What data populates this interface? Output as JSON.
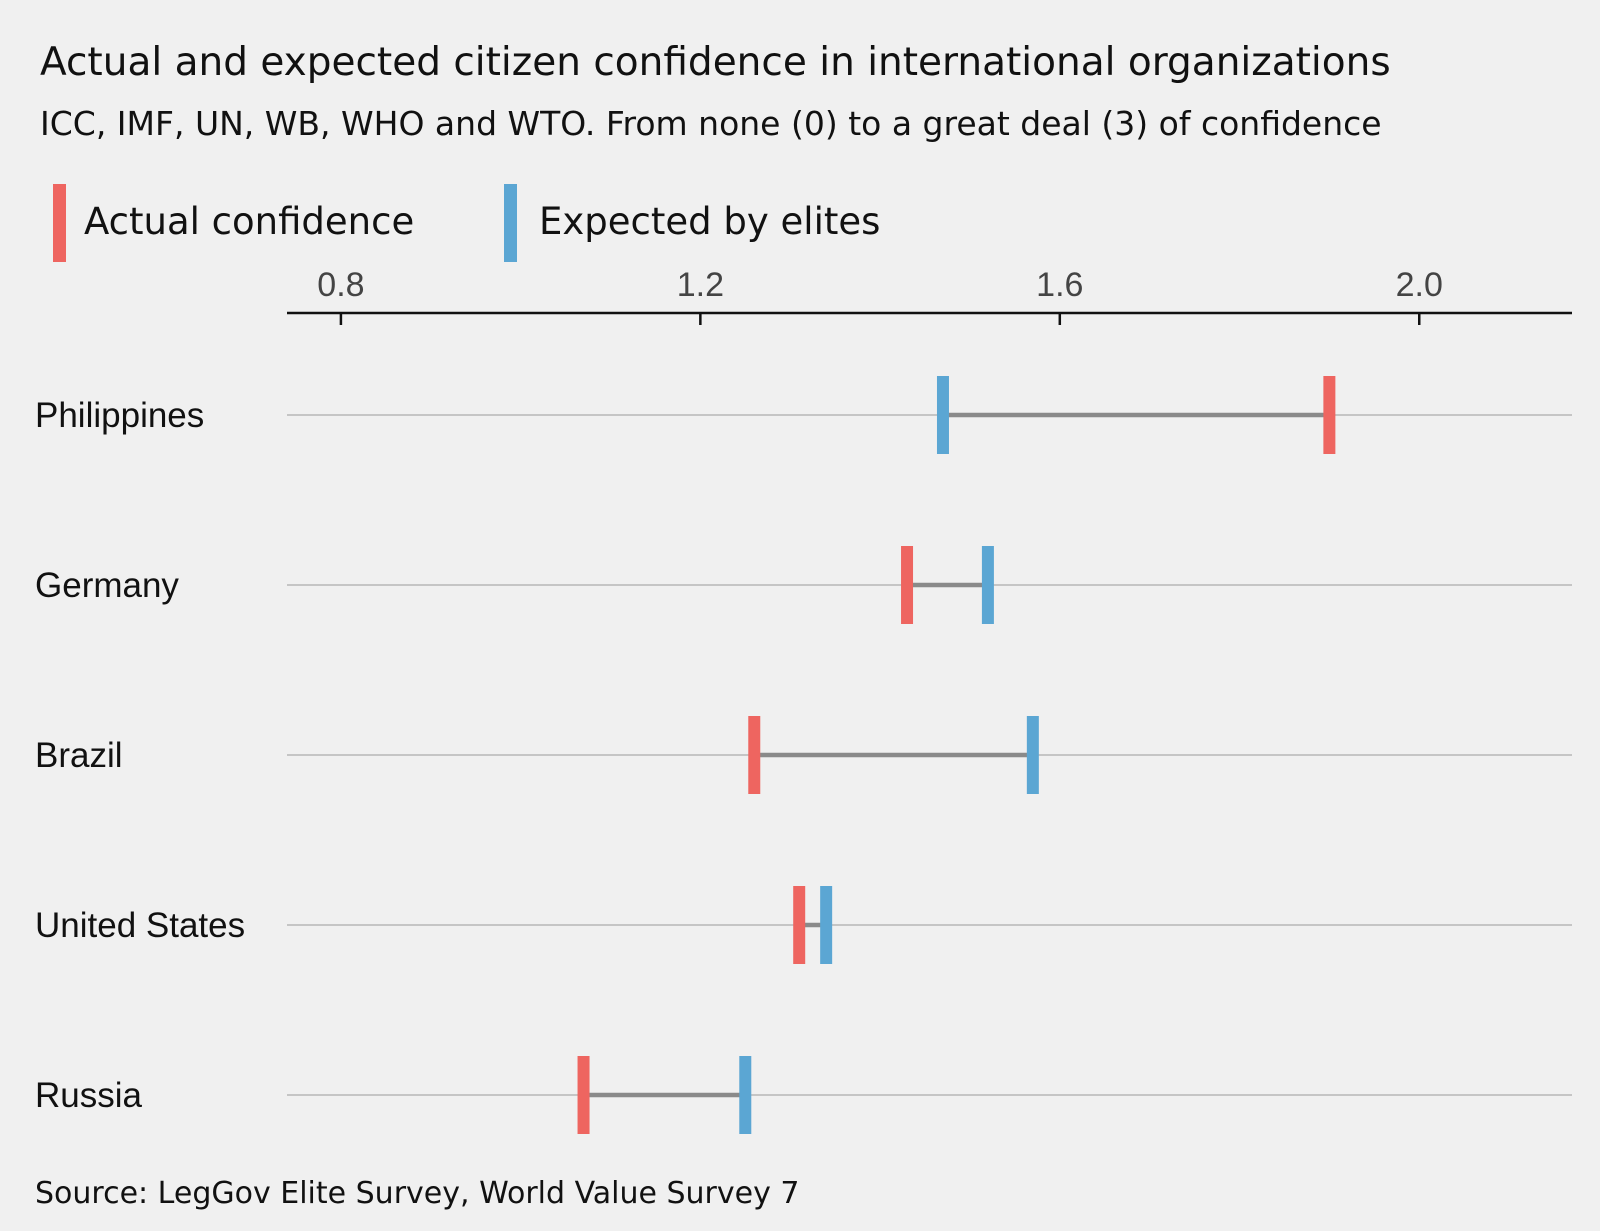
{
  "chart_data": {
    "type": "dumbbell",
    "title": "Actual and expected citizen confidence in international organizations",
    "subtitle": "ICC, IMF, UN, WB, WHO and WTO. From none (0) to a great deal (3) of confidence",
    "source": "Source: LegGov Elite Survey, World Value Survey 7",
    "xlim": [
      0.74,
      2.17
    ],
    "xticks": [
      "0.8",
      "1.2",
      "1.6",
      "2.0"
    ],
    "legend_placement": "top-left",
    "categories": [
      "Philippines",
      "Germany",
      "Brazil",
      "United States",
      "Russia"
    ],
    "series": [
      {
        "name": "Actual confidence",
        "color": "#ee6560",
        "values": [
          1.9,
          1.43,
          1.26,
          1.31,
          1.07
        ]
      },
      {
        "name": "Expected by elites",
        "color": "#5ba6d3",
        "values": [
          1.47,
          1.52,
          1.57,
          1.34,
          1.25
        ]
      }
    ],
    "connector_color": "#8a8a8a",
    "gridline_color": "#9a9a9a",
    "axis_color": "#111111"
  }
}
